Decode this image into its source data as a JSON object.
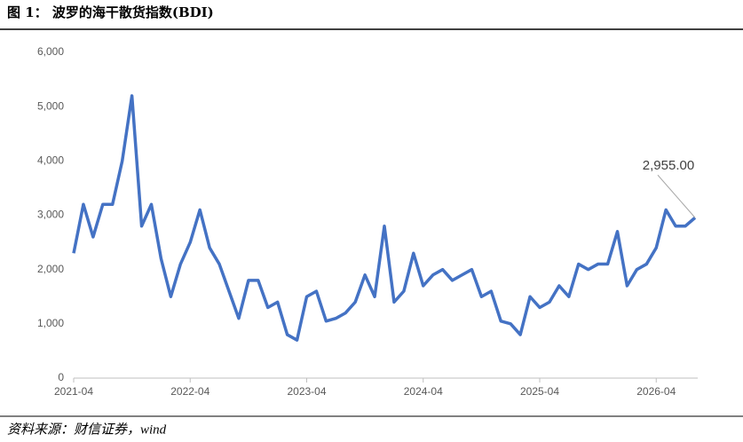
{
  "chart_data": {
    "type": "line",
    "title": "图 1： 波罗的海干散货指数(BDI)",
    "source": "资料来源：财信证券，wind",
    "x": [
      "2021-04",
      "2021-05",
      "2021-06",
      "2021-07",
      "2021-08",
      "2021-09",
      "2021-10",
      "2021-11",
      "2021-12",
      "2022-01",
      "2022-02",
      "2022-03",
      "2022-04",
      "2022-05",
      "2022-06",
      "2022-07",
      "2022-08",
      "2022-09",
      "2022-10",
      "2022-11",
      "2022-12",
      "2023-01",
      "2023-02",
      "2023-03",
      "2023-04",
      "2023-05",
      "2023-06",
      "2023-07",
      "2023-08",
      "2023-09",
      "2023-10",
      "2023-11",
      "2023-12",
      "2024-01",
      "2024-02",
      "2024-03",
      "2024-04",
      "2024-05",
      "2024-06",
      "2024-07",
      "2024-08",
      "2024-09",
      "2024-10",
      "2024-11",
      "2024-12",
      "2025-01",
      "2025-02",
      "2025-03",
      "2025-04",
      "2025-05",
      "2025-06",
      "2025-07",
      "2025-08",
      "2025-09",
      "2025-10",
      "2025-11",
      "2025-12",
      "2026-01",
      "2026-02",
      "2026-03",
      "2026-04",
      "2026-05",
      "2026-06",
      "2026-07",
      "2026-08"
    ],
    "series": [
      {
        "name": "BDI",
        "color": "#4472c4",
        "values": [
          2300,
          3200,
          2600,
          3200,
          3200,
          4000,
          5200,
          2800,
          3200,
          2200,
          1500,
          2100,
          2500,
          3100,
          2400,
          2100,
          1600,
          1100,
          1800,
          1800,
          1300,
          1400,
          800,
          700,
          1500,
          1600,
          1050,
          1100,
          1200,
          1400,
          1900,
          1500,
          2800,
          1400,
          1600,
          2300,
          1700,
          1900,
          2000,
          1800,
          1900,
          2000,
          1500,
          1600,
          1050,
          1000,
          800,
          1500,
          1300,
          1400,
          1700,
          1500,
          2100,
          2000,
          2100,
          2100,
          2700,
          1700,
          2000,
          2100,
          2400,
          3100,
          2800,
          2800,
          2955
        ]
      }
    ],
    "last_value_label": "2,955.00",
    "xticks": [
      "2021-04",
      "2022-04",
      "2023-04",
      "2024-04",
      "2025-04",
      "2026-04"
    ],
    "ylim": [
      0,
      6000
    ],
    "yticks": [
      0,
      {
        "value": 1000,
        "label": "1,000"
      },
      {
        "value": 2000,
        "label": "2,000"
      },
      {
        "value": 3000,
        "label": "3,000"
      },
      {
        "value": 4000,
        "label": "4,000"
      },
      {
        "value": 5000,
        "label": "5,000"
      },
      {
        "value": 6000,
        "label": "6,000"
      }
    ],
    "grid": false
  }
}
